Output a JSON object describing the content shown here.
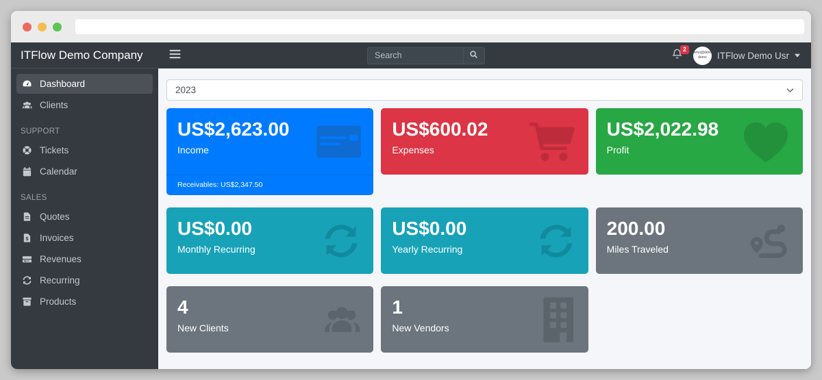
{
  "browser": {
    "url_value": ""
  },
  "sidebar": {
    "brand": "ITFlow Demo Company",
    "sections": [
      {
        "header": null,
        "items": [
          {
            "label": "Dashboard",
            "icon": "tachometer-icon",
            "active": true
          },
          {
            "label": "Clients",
            "icon": "users-icon",
            "active": false
          }
        ]
      },
      {
        "header": "SUPPORT",
        "items": [
          {
            "label": "Tickets",
            "icon": "life-ring-icon",
            "active": false
          },
          {
            "label": "Calendar",
            "icon": "calendar-icon",
            "active": false
          }
        ]
      },
      {
        "header": "SALES",
        "items": [
          {
            "label": "Quotes",
            "icon": "file-lines-icon",
            "active": false
          },
          {
            "label": "Invoices",
            "icon": "file-dollar-icon",
            "active": false
          },
          {
            "label": "Revenues",
            "icon": "money-check-icon",
            "active": false
          },
          {
            "label": "Recurring",
            "icon": "sync-icon",
            "active": false
          },
          {
            "label": "Products",
            "icon": "box-icon",
            "active": false
          }
        ]
      }
    ]
  },
  "navbar": {
    "search_placeholder": "Search",
    "notification_count": "2",
    "avatar_line1": "demo@demo",
    "avatar_line2": "demo",
    "user_name": "ITFlow Demo Usr"
  },
  "filters": {
    "year": "2023"
  },
  "colors": {
    "navbar_bg": "#343a40",
    "content_bg": "#f4f6f9",
    "primary": "#007bff",
    "danger": "#dc3545",
    "success": "#28a745",
    "info": "#17a2b8",
    "secondary": "#6c757d",
    "badge": "#dc3545"
  },
  "cards": [
    {
      "id": "income",
      "value": "US$2,623.00",
      "label": "Income",
      "footer": "Receivables: US$2,347.50",
      "bg": "#007bff",
      "icon": "credit-card-icon",
      "icon_color": "#0e6bd2"
    },
    {
      "id": "expenses",
      "value": "US$600.02",
      "label": "Expenses",
      "footer": null,
      "bg": "#dc3545",
      "icon": "cart-icon",
      "icon_color": "#bd2c3a"
    },
    {
      "id": "profit",
      "value": "US$2,022.98",
      "label": "Profit",
      "footer": null,
      "bg": "#28a745",
      "icon": "heart-icon",
      "icon_color": "#23913c"
    },
    {
      "id": "monthly-recurring",
      "value": "US$0.00",
      "label": "Monthly Recurring",
      "footer": null,
      "bg": "#17a2b8",
      "icon": "sync-icon",
      "icon_color": "#128a9d"
    },
    {
      "id": "yearly-recurring",
      "value": "US$0.00",
      "label": "Yearly Recurring",
      "footer": null,
      "bg": "#17a2b8",
      "icon": "sync-icon",
      "icon_color": "#128a9d"
    },
    {
      "id": "miles-traveled",
      "value": "200.00",
      "label": "Miles Traveled",
      "footer": null,
      "bg": "#6c757d",
      "icon": "route-icon",
      "icon_color": "#5c646b"
    },
    {
      "id": "new-clients",
      "value": "4",
      "label": "New Clients",
      "footer": null,
      "bg": "#6c757d",
      "icon": "users-icon",
      "icon_color": "#5c646b"
    },
    {
      "id": "new-vendors",
      "value": "1",
      "label": "New Vendors",
      "footer": null,
      "bg": "#6c757d",
      "icon": "building-icon",
      "icon_color": "#5c646b"
    }
  ]
}
